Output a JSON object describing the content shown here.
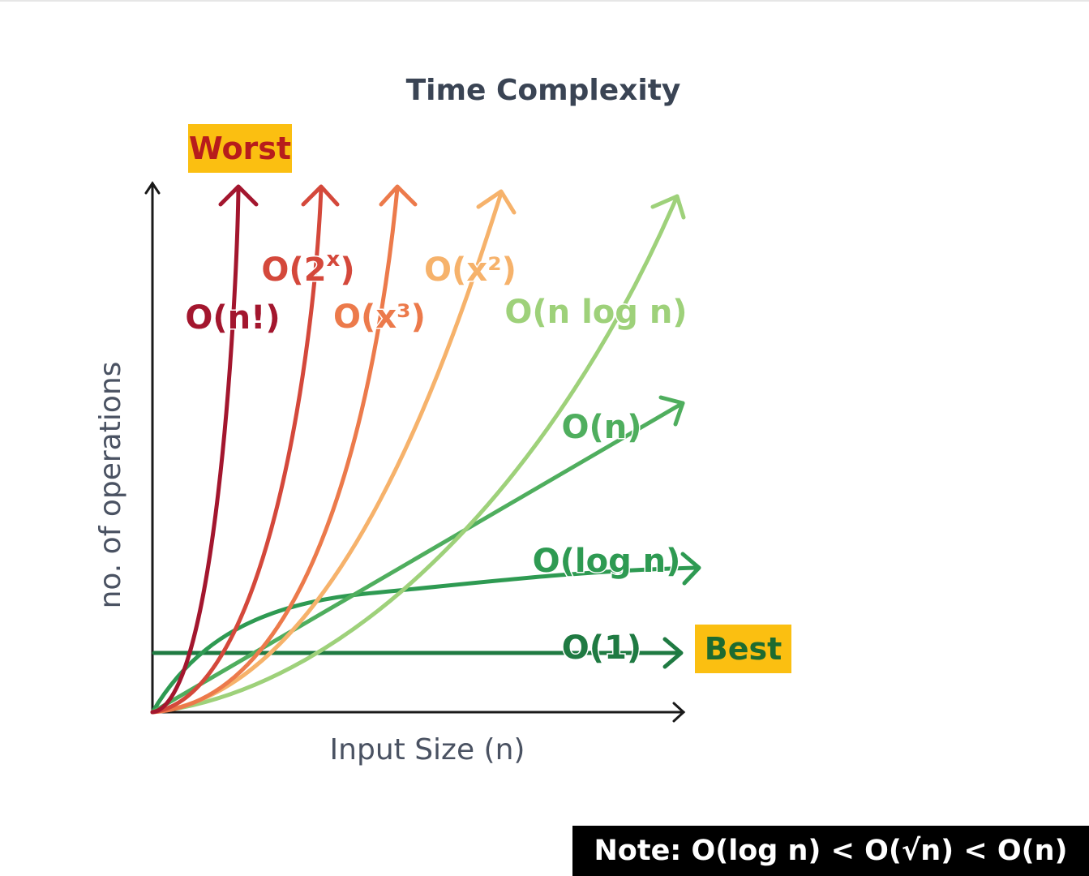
{
  "colors": {
    "axis": "#1a1a1a",
    "title": "#3a4454",
    "axis_label": "#4a5262",
    "badge_bg": "#fbbf11",
    "worst_text": "#b71c1c",
    "best_text": "#1e6b30",
    "note_bg": "#000000",
    "note_text": "#ffffff"
  },
  "badges": {
    "worst": "Worst",
    "best": "Best"
  },
  "note": "Note: O(log n) < O(√n) < O(n)",
  "chart_data": {
    "type": "line",
    "title": "Time Complexity",
    "xlabel": "Input Size (n)",
    "ylabel": "no. of operations",
    "grid": false,
    "legend": "inline labels on curves",
    "series": [
      {
        "name": "O(n!)",
        "label": "O(n!)",
        "color": "#a3162e"
      },
      {
        "name": "O(2^x)",
        "label": "O(2",
        "label_sup": "x",
        "label_end": ")",
        "color": "#d4483b"
      },
      {
        "name": "O(x³)",
        "label": "O(x³)",
        "color": "#ec7a4b"
      },
      {
        "name": "O(x²)",
        "label": "O(x²)",
        "color": "#f6b26b"
      },
      {
        "name": "O(n log n)",
        "label": "O(n log n)",
        "color": "#9ed17a"
      },
      {
        "name": "O(n)",
        "label": "O(n)",
        "color": "#4fae5e"
      },
      {
        "name": "O(log n)",
        "label": "O(log n)",
        "color": "#2e9a52"
      },
      {
        "name": "O(1)",
        "label": "O(1)",
        "color": "#1f7a42"
      }
    ]
  }
}
